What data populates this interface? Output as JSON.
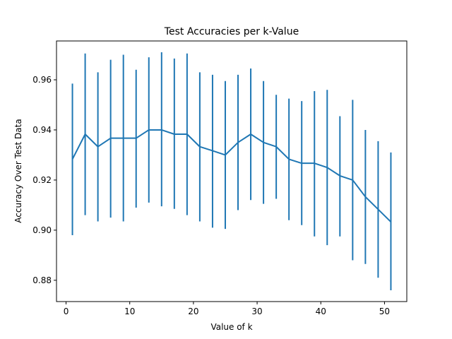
{
  "chart_data": {
    "type": "line",
    "title": "Test Accuracies per k-Value",
    "xlabel": "Value of k",
    "ylabel": "Accuracy Over Test Data",
    "xlim": [
      -1.5,
      53.5
    ],
    "ylim": [
      0.8715,
      0.9755
    ],
    "xticks": [
      0,
      10,
      20,
      30,
      40,
      50
    ],
    "xtick_labels": [
      "0",
      "10",
      "20",
      "30",
      "40",
      "50"
    ],
    "yticks": [
      0.88,
      0.9,
      0.92,
      0.94,
      0.96
    ],
    "ytick_labels": [
      "0.88",
      "0.90",
      "0.92",
      "0.94",
      "0.96"
    ],
    "grid": false,
    "color": "#1f77b4",
    "series": [
      {
        "x": [
          1,
          3,
          5,
          7,
          9,
          11,
          13,
          15,
          17,
          19,
          21,
          23,
          25,
          27,
          29,
          31,
          33,
          35,
          37,
          39,
          41,
          43,
          45,
          47,
          49,
          51
        ],
        "y": [
          0.9283,
          0.9383,
          0.9333,
          0.9367,
          0.9367,
          0.9367,
          0.94,
          0.94,
          0.9383,
          0.9383,
          0.9333,
          0.9317,
          0.93,
          0.935,
          0.9383,
          0.935,
          0.9333,
          0.9283,
          0.9267,
          0.9267,
          0.925,
          0.9217,
          0.92,
          0.9133,
          0.9083,
          0.9033
        ],
        "err_low": [
          0.898,
          0.906,
          0.9035,
          0.905,
          0.9035,
          0.909,
          0.911,
          0.9095,
          0.9085,
          0.906,
          0.9035,
          0.901,
          0.9005,
          0.908,
          0.912,
          0.9105,
          0.9125,
          0.904,
          0.902,
          0.8975,
          0.894,
          0.8975,
          0.888,
          0.8865,
          0.881,
          0.876
        ],
        "err_high": [
          0.9585,
          0.9705,
          0.963,
          0.968,
          0.97,
          0.964,
          0.969,
          0.971,
          0.9685,
          0.9705,
          0.963,
          0.962,
          0.9595,
          0.962,
          0.9645,
          0.9595,
          0.954,
          0.9525,
          0.9515,
          0.9555,
          0.956,
          0.9455,
          0.952,
          0.94,
          0.9355,
          0.931
        ]
      }
    ]
  }
}
